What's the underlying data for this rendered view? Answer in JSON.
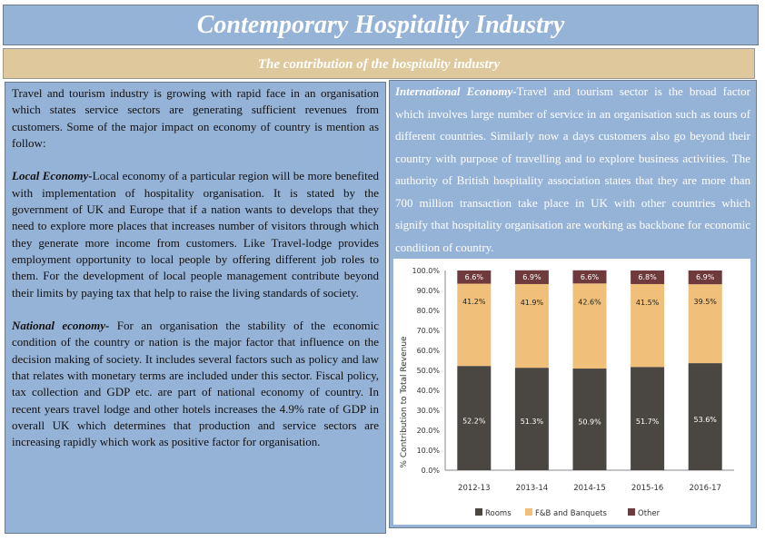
{
  "title": "Contemporary Hospitality Industry",
  "subtitle": "The contribution of the hospitality industry",
  "left": {
    "intro": "Travel and tourism industry is growing with rapid face in an organisation which states service sectors are generating sufficient revenues from customers. Some of the major impact on economy of country is mention as follow:",
    "local_heading": "Local Economy-",
    "local_text": "Local economy of a particular region will be more benefited with implementation of hospitality organisation. It is stated by the government of UK and Europe that if a nation wants to develops that they need to explore more places that increases number of visitors through which they generate more income from customers. Like Travel-lodge provides employment opportunity to local people by offering different job roles to them. For the development of local people management contribute beyond their limits by paying tax that help to raise the living standards of society.",
    "national_heading": "National economy-",
    "national_text": " For an organisation the stability of the economic condition of the country or nation is the major factor that influence on the decision making of society. It includes several factors such as policy and law that relates with monetary terms are included under this sector. Fiscal policy, tax collection and GDP etc. are part of national economy of country. In recent years travel lodge and other hotels increases the 4.9% rate of GDP in overall UK which determines that production and service sectors are increasing rapidly which work as positive factor for organisation."
  },
  "right": {
    "heading": "International Economy-",
    "text": "Travel and tourism sector is the broad factor which involves large number of service in an organisation such as tours of different countries. Similarly now a days customers also go beyond their country with purpose of travelling and to explore business activities. The authority of British hospitality association states that they are more than 700 million transaction take place in UK with other countries which signify that hospitality organisation are working as backbone for economic condition of country."
  },
  "chart_data": {
    "type": "bar",
    "stacked": true,
    "categories": [
      "2012-13",
      "2013-14",
      "2014-15",
      "2015-16",
      "2016-17"
    ],
    "series": [
      {
        "name": "Rooms",
        "values": [
          52.2,
          51.3,
          50.9,
          51.7,
          53.6
        ],
        "color": "#4a4642",
        "label_color": "#ffffff"
      },
      {
        "name": "F&B and Banquets",
        "values": [
          41.2,
          41.9,
          42.6,
          41.5,
          39.5
        ],
        "color": "#f0c07a",
        "label_color": "#222222"
      },
      {
        "name": "Other",
        "values": [
          6.6,
          6.9,
          6.6,
          6.8,
          6.9
        ],
        "color": "#6e3a3c",
        "label_color": "#ffffff"
      }
    ],
    "ylabel": "% Contribution to Total Revenue",
    "ylim": [
      0,
      100
    ],
    "yticks": [
      "0.0%",
      "10.0%",
      "20.0%",
      "30.0%",
      "40.0%",
      "50.0%",
      "60.0%",
      "70.0%",
      "80.0%",
      "90.0%",
      "100.0%"
    ],
    "legend": "bottom"
  }
}
